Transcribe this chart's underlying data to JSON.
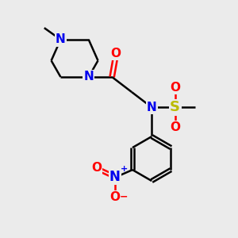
{
  "bg_color": "#ebebeb",
  "atom_colors": {
    "C": "#000000",
    "N": "#0000ee",
    "O": "#ff0000",
    "S": "#bbbb00",
    "H": "#000000"
  },
  "bond_color": "#000000",
  "bond_width": 1.8,
  "font_size_atoms": 11,
  "font_size_small": 9,
  "font_size_methyl": 9
}
